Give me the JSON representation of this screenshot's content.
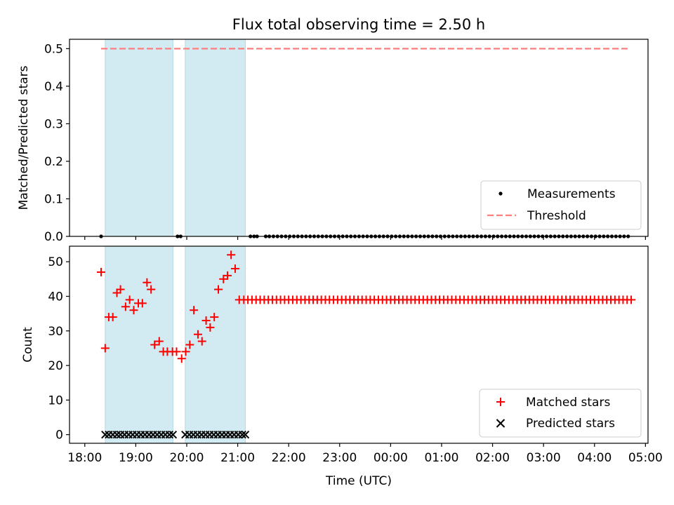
{
  "chart_data": [
    {
      "type": "scatter",
      "title": "Flux total observing time = 2.50 h",
      "xlabel": "",
      "ylabel": "Matched/Predicted stars",
      "xlim": [
        -0.3,
        11.05
      ],
      "ylim": [
        0,
        0.525
      ],
      "yticks": [
        0.0,
        0.1,
        0.2,
        0.3,
        0.4,
        0.5
      ],
      "ytick_labels": [
        "0.0",
        "0.1",
        "0.2",
        "0.3",
        "0.4",
        "0.5"
      ],
      "shaded_intervals": [
        [
          0.4,
          1.73
        ],
        [
          1.97,
          3.15
        ]
      ],
      "shade_color": "#add8e6",
      "threshold": {
        "name": "Threshold",
        "value": 0.5,
        "x_range": [
          0.32,
          10.7
        ],
        "color": "#ff7f7f"
      },
      "series": [
        {
          "name": "Measurements",
          "color": "#000000",
          "x": [
            0.32,
            1.82,
            1.88,
            3.25,
            3.32,
            3.38,
            3.55,
            3.62,
            3.7,
            3.78,
            3.86,
            3.94,
            4.02,
            4.1,
            4.18,
            4.26,
            4.34,
            4.42,
            4.5,
            4.58,
            4.66,
            4.74,
            4.82,
            4.9,
            4.98,
            5.06,
            5.14,
            5.22,
            5.3,
            5.38,
            5.46,
            5.54,
            5.62,
            5.7,
            5.78,
            5.86,
            5.94,
            6.02,
            6.1,
            6.18,
            6.26,
            6.34,
            6.42,
            6.5,
            6.58,
            6.66,
            6.74,
            6.82,
            6.9,
            6.98,
            7.06,
            7.14,
            7.22,
            7.3,
            7.38,
            7.46,
            7.54,
            7.62,
            7.7,
            7.78,
            7.86,
            7.94,
            8.02,
            8.1,
            8.18,
            8.26,
            8.34,
            8.42,
            8.5,
            8.58,
            8.66,
            8.74,
            8.82,
            8.9,
            8.98,
            9.06,
            9.14,
            9.22,
            9.3,
            9.38,
            9.46,
            9.54,
            9.62,
            9.7,
            9.78,
            9.86,
            9.94,
            10.02,
            10.1,
            10.18,
            10.26,
            10.34,
            10.42,
            10.5,
            10.58,
            10.66
          ],
          "y": [
            0,
            0,
            0,
            0,
            0,
            0,
            0,
            0,
            0,
            0,
            0,
            0,
            0,
            0,
            0,
            0,
            0,
            0,
            0,
            0,
            0,
            0,
            0,
            0,
            0,
            0,
            0,
            0,
            0,
            0,
            0,
            0,
            0,
            0,
            0,
            0,
            0,
            0,
            0,
            0,
            0,
            0,
            0,
            0,
            0,
            0,
            0,
            0,
            0,
            0,
            0,
            0,
            0,
            0,
            0,
            0,
            0,
            0,
            0,
            0,
            0,
            0,
            0,
            0,
            0,
            0,
            0,
            0,
            0,
            0,
            0,
            0,
            0,
            0,
            0,
            0,
            0,
            0,
            0,
            0,
            0,
            0,
            0,
            0,
            0,
            0,
            0,
            0,
            0,
            0,
            0,
            0,
            0,
            0,
            0,
            0
          ]
        }
      ],
      "legend": [
        "Measurements",
        "Threshold"
      ],
      "legend_loc": "lower right"
    },
    {
      "type": "scatter",
      "title": "",
      "xlabel": "Time (UTC)",
      "ylabel": "Count",
      "xlim": [
        -0.3,
        11.05
      ],
      "ylim": [
        -2.5,
        54.5
      ],
      "yticks": [
        0,
        10,
        20,
        30,
        40,
        50
      ],
      "ytick_labels": [
        "0",
        "10",
        "20",
        "30",
        "40",
        "50"
      ],
      "xticks": [
        0,
        1,
        2,
        3,
        4,
        5,
        6,
        7,
        8,
        9,
        10,
        11
      ],
      "xtick_labels": [
        "18:00",
        "19:00",
        "20:00",
        "21:00",
        "22:00",
        "23:00",
        "00:00",
        "01:00",
        "02:00",
        "03:00",
        "04:00",
        "05:00"
      ],
      "shaded_intervals": [
        [
          0.4,
          1.73
        ],
        [
          1.97,
          3.15
        ]
      ],
      "shade_color": "#add8e6",
      "series": [
        {
          "name": "Matched stars",
          "marker": "+",
          "color": "#ff0000",
          "x": [
            0.32,
            0.4,
            0.47,
            0.55,
            0.63,
            0.7,
            0.8,
            0.88,
            0.96,
            1.05,
            1.13,
            1.22,
            1.3,
            1.37,
            1.46,
            1.54,
            1.62,
            1.72,
            1.8,
            1.9,
            1.98,
            2.06,
            2.14,
            2.22,
            2.3,
            2.38,
            2.46,
            2.54,
            2.62,
            2.72,
            2.8,
            2.87,
            2.95,
            3.03,
            3.12,
            3.2,
            3.28,
            3.36,
            3.44,
            3.52,
            3.6,
            3.68,
            3.76,
            3.84,
            3.92,
            4.0,
            4.08,
            4.16,
            4.24,
            4.32,
            4.4,
            4.48,
            4.56,
            4.64,
            4.72,
            4.8,
            4.88,
            4.96,
            5.04,
            5.12,
            5.2,
            5.28,
            5.36,
            5.44,
            5.52,
            5.6,
            5.68,
            5.76,
            5.84,
            5.92,
            6.0,
            6.08,
            6.16,
            6.24,
            6.32,
            6.4,
            6.48,
            6.56,
            6.64,
            6.72,
            6.8,
            6.88,
            6.96,
            7.04,
            7.12,
            7.2,
            7.28,
            7.36,
            7.44,
            7.52,
            7.6,
            7.68,
            7.76,
            7.84,
            7.92,
            8.0,
            8.08,
            8.16,
            8.24,
            8.32,
            8.4,
            8.48,
            8.56,
            8.64,
            8.72,
            8.8,
            8.88,
            8.96,
            9.04,
            9.12,
            9.2,
            9.28,
            9.36,
            9.44,
            9.52,
            9.6,
            9.68,
            9.76,
            9.84,
            9.92,
            10.0,
            10.08,
            10.16,
            10.24,
            10.32,
            10.4,
            10.48,
            10.56,
            10.64,
            10.72
          ],
          "y": [
            47,
            25,
            34,
            34,
            41,
            42,
            37,
            39,
            36,
            38,
            38,
            44,
            42,
            26,
            27,
            24,
            24,
            24,
            24,
            22,
            24,
            26,
            36,
            29,
            27,
            33,
            31,
            34,
            42,
            45,
            46,
            52,
            48,
            39,
            39,
            39,
            39,
            39,
            39,
            39,
            39,
            39,
            39,
            39,
            39,
            39,
            39,
            39,
            39,
            39,
            39,
            39,
            39,
            39,
            39,
            39,
            39,
            39,
            39,
            39,
            39,
            39,
            39,
            39,
            39,
            39,
            39,
            39,
            39,
            39,
            39,
            39,
            39,
            39,
            39,
            39,
            39,
            39,
            39,
            39,
            39,
            39,
            39,
            39,
            39,
            39,
            39,
            39,
            39,
            39,
            39,
            39,
            39,
            39,
            39,
            39,
            39,
            39,
            39,
            39,
            39,
            39,
            39,
            39,
            39,
            39,
            39,
            39,
            39,
            39,
            39,
            39,
            39,
            39,
            39,
            39,
            39,
            39,
            39,
            39,
            39,
            39,
            39,
            39,
            39,
            39,
            39,
            39,
            39,
            39
          ]
        },
        {
          "name": "Predicted stars",
          "marker": "x",
          "color": "#000000",
          "x": [
            0.4,
            0.47,
            0.55,
            0.63,
            0.7,
            0.78,
            0.86,
            0.94,
            1.02,
            1.1,
            1.18,
            1.26,
            1.34,
            1.42,
            1.5,
            1.58,
            1.66,
            1.73,
            1.97,
            2.05,
            2.13,
            2.21,
            2.29,
            2.37,
            2.45,
            2.53,
            2.61,
            2.69,
            2.77,
            2.85,
            2.93,
            3.01,
            3.09,
            3.15
          ],
          "y": [
            0,
            0,
            0,
            0,
            0,
            0,
            0,
            0,
            0,
            0,
            0,
            0,
            0,
            0,
            0,
            0,
            0,
            0,
            0,
            0,
            0,
            0,
            0,
            0,
            0,
            0,
            0,
            0,
            0,
            0,
            0,
            0,
            0,
            0
          ]
        }
      ],
      "legend": [
        "Matched stars",
        "Predicted stars"
      ],
      "legend_loc": "lower right"
    }
  ]
}
